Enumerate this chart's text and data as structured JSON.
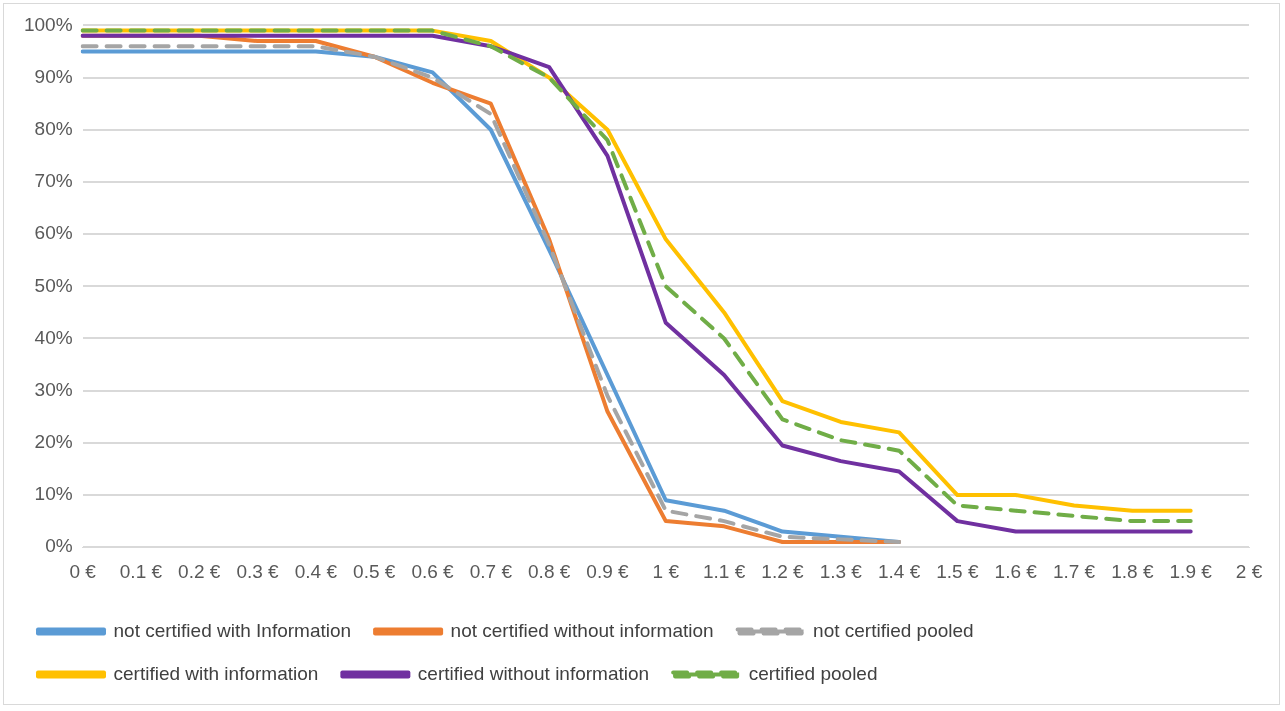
{
  "chart_data": {
    "type": "line",
    "categories": [
      "0 €",
      "0.1 €",
      "0.2 €",
      "0.3 €",
      "0.4 €",
      "0.5 €",
      "0.6 €",
      "0.7 €",
      "0.8 €",
      "0.9 €",
      "1 €",
      "1.1 €",
      "1.2 €",
      "1.3 €",
      "1.4 €",
      "1.5 €",
      "1.6 €",
      "1.7 €",
      "1.8 €",
      "1.9 €",
      "2 €"
    ],
    "ylim": [
      0,
      100
    ],
    "yticks": [
      {
        "value": 0,
        "label": "0%"
      },
      {
        "value": 10,
        "label": "10%"
      },
      {
        "value": 20,
        "label": "20%"
      },
      {
        "value": 30,
        "label": "30%"
      },
      {
        "value": 40,
        "label": "40%"
      },
      {
        "value": 50,
        "label": "50%"
      },
      {
        "value": 60,
        "label": "60%"
      },
      {
        "value": 70,
        "label": "70%"
      },
      {
        "value": 80,
        "label": "80%"
      },
      {
        "value": 90,
        "label": "90%"
      },
      {
        "value": 100,
        "label": "100%"
      }
    ],
    "grid": "y",
    "legend": "bottom",
    "marker": "none",
    "series": [
      {
        "name": "not certified with Information",
        "color": "#5b9bd5",
        "line_style": "solid",
        "values": [
          95,
          95,
          95,
          95,
          95,
          94,
          91,
          80,
          57,
          33,
          9,
          7,
          3,
          2,
          1,
          null,
          null,
          null,
          null,
          null,
          null
        ]
      },
      {
        "name": "not certified without information",
        "color": "#ed7d31",
        "line_style": "solid",
        "values": [
          98,
          98,
          98,
          97,
          97,
          94,
          89,
          85,
          59,
          26,
          5,
          4,
          1,
          1,
          1,
          null,
          null,
          null,
          null,
          null,
          null
        ]
      },
      {
        "name": "not certified pooled",
        "color": "#a5a5a5",
        "line_style": "dashed",
        "values": [
          96,
          96,
          96,
          96,
          96,
          94,
          90,
          83,
          58,
          29,
          7,
          5,
          2,
          1.5,
          1,
          null,
          null,
          null,
          null,
          null,
          null
        ]
      },
      {
        "name": "certified with information",
        "color": "#ffc000",
        "line_style": "solid",
        "values": [
          99,
          99,
          99,
          99,
          99,
          99,
          99,
          97,
          90,
          80,
          59,
          45,
          28,
          24,
          22,
          10,
          10,
          8,
          7,
          7,
          null
        ]
      },
      {
        "name": "certified without information",
        "color": "#7030a0",
        "line_style": "solid",
        "values": [
          98,
          98,
          98,
          98,
          98,
          98,
          98,
          96,
          92,
          75,
          43,
          33,
          19.5,
          16.5,
          14.5,
          5,
          3,
          3,
          3,
          3,
          null
        ]
      },
      {
        "name": "certified pooled",
        "color": "#70ad47",
        "line_style": "dashed",
        "values": [
          99,
          99,
          99,
          99,
          99,
          99,
          99,
          96,
          90,
          78,
          50,
          40,
          24.5,
          20.5,
          18.5,
          8,
          7,
          6,
          5,
          5,
          null
        ]
      }
    ]
  }
}
